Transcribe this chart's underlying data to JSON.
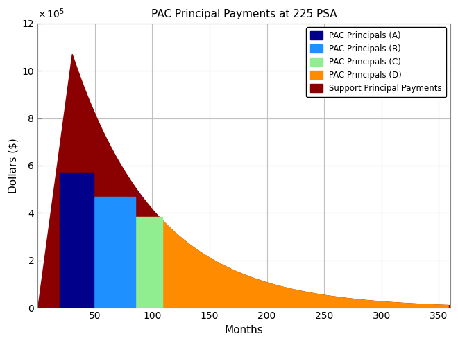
{
  "title": "PAC Principal Payments at 225 PSA",
  "xlabel": "Months",
  "ylabel": "Dollars ($)",
  "ylim": [
    0,
    1200000
  ],
  "xlim": [
    0,
    360
  ],
  "ytick_scale": 100000.0,
  "yticks": [
    0,
    2,
    4,
    6,
    8,
    10,
    12
  ],
  "xticks": [
    50,
    100,
    150,
    200,
    250,
    300,
    350
  ],
  "support_color": "#8B0000",
  "pac_a_color": "#00008B",
  "pac_b_color": "#1E90FF",
  "pac_c_color": "#90EE90",
  "pac_d_color": "#FF8C00",
  "pac_a_xstart": 19,
  "pac_a_xend": 49,
  "pac_a_height": 570000,
  "pac_b_xstart": 49,
  "pac_b_xend": 85,
  "pac_b_height": 470000,
  "pac_c_xstart": 85,
  "pac_c_xend": 109,
  "pac_c_height": 385000,
  "pac_d_xstart": 109,
  "pac_d_xend": 358,
  "support_peak_month": 30,
  "support_peak_value": 1070000,
  "support_rise_start": 1,
  "support_decay_rate": 0.0135,
  "legend_labels": [
    "PAC Principals (A)",
    "PAC Principals (B)",
    "PAC Principals (C)",
    "PAC Principals (D)",
    "Support Principal Payments"
  ],
  "legend_colors": [
    "#00008B",
    "#1E90FF",
    "#90EE90",
    "#FF8C00",
    "#8B0000"
  ],
  "background_color": "#FFFFFF",
  "grid_color": "#C0C0C0",
  "figsize": [
    6.6,
    4.95
  ],
  "dpi": 100
}
